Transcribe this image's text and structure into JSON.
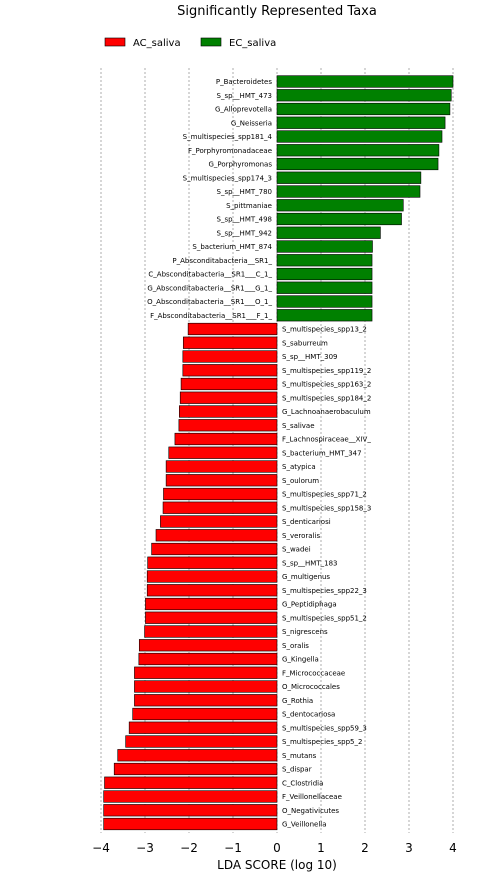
{
  "chart_data": {
    "type": "bar",
    "orientation": "horizontal",
    "title": "Significantly Represented Taxa",
    "xlabel": "LDA SCORE (log 10)",
    "ylabel": "",
    "xlim": [
      -4.1,
      4.2
    ],
    "xticks": [
      "−4",
      "−3",
      "−2",
      "−1",
      "0",
      "1",
      "2",
      "3",
      "4"
    ],
    "xtick_values": [
      -4,
      -3,
      -2,
      -1,
      0,
      1,
      2,
      3,
      4
    ],
    "grid": "vertical dashed",
    "legend_position": "top-left",
    "colors": {
      "AC_saliva": "#ff0000",
      "EC_saliva": "#008000"
    },
    "series": [
      {
        "name": "AC_saliva"
      },
      {
        "name": "EC_saliva"
      }
    ],
    "bars": [
      {
        "label": "P_Bacteroidetes",
        "value": 4.0,
        "group": "EC_saliva"
      },
      {
        "label": "S_sp__HMT_473",
        "value": 3.96,
        "group": "EC_saliva"
      },
      {
        "label": "G_Alloprevotella",
        "value": 3.93,
        "group": "EC_saliva"
      },
      {
        "label": "G_Neisseria",
        "value": 3.82,
        "group": "EC_saliva"
      },
      {
        "label": "S_multispecies_spp181_4",
        "value": 3.75,
        "group": "EC_saliva"
      },
      {
        "label": "F_Porphyromonadaceae",
        "value": 3.68,
        "group": "EC_saliva"
      },
      {
        "label": "G_Porphyromonas",
        "value": 3.66,
        "group": "EC_saliva"
      },
      {
        "label": "S_multispecies_spp174_3",
        "value": 3.27,
        "group": "EC_saliva"
      },
      {
        "label": "S_sp__HMT_780",
        "value": 3.25,
        "group": "EC_saliva"
      },
      {
        "label": "S_pittmaniae",
        "value": 2.87,
        "group": "EC_saliva"
      },
      {
        "label": "S_sp__HMT_498",
        "value": 2.83,
        "group": "EC_saliva"
      },
      {
        "label": "S_sp__HMT_942",
        "value": 2.35,
        "group": "EC_saliva"
      },
      {
        "label": "S_bacterium_HMT_874",
        "value": 2.17,
        "group": "EC_saliva"
      },
      {
        "label": "P_Absconditabacteria__SR1_",
        "value": 2.16,
        "group": "EC_saliva"
      },
      {
        "label": "C_Absconditabacteria__SR1___C_1_",
        "value": 2.16,
        "group": "EC_saliva"
      },
      {
        "label": "G_Absconditabacteria__SR1___G_1_",
        "value": 2.16,
        "group": "EC_saliva"
      },
      {
        "label": "O_Absconditabacteria__SR1___O_1_",
        "value": 2.16,
        "group": "EC_saliva"
      },
      {
        "label": "F_Absconditabacteria__SR1___F_1_",
        "value": 2.16,
        "group": "EC_saliva"
      },
      {
        "label": "S_multispecies_spp13_2",
        "value": -2.02,
        "group": "AC_saliva"
      },
      {
        "label": "S_saburreum",
        "value": -2.13,
        "group": "AC_saliva"
      },
      {
        "label": "S_sp__HMT_309",
        "value": -2.14,
        "group": "AC_saliva"
      },
      {
        "label": "S_multispecies_spp119_2",
        "value": -2.14,
        "group": "AC_saliva"
      },
      {
        "label": "S_multispecies_spp163_2",
        "value": -2.18,
        "group": "AC_saliva"
      },
      {
        "label": "S_multispecies_spp184_2",
        "value": -2.2,
        "group": "AC_saliva"
      },
      {
        "label": "G_Lachnoanaerobaculum",
        "value": -2.22,
        "group": "AC_saliva"
      },
      {
        "label": "S_salivae",
        "value": -2.23,
        "group": "AC_saliva"
      },
      {
        "label": "F_Lachnospiraceae__XIV_",
        "value": -2.32,
        "group": "AC_saliva"
      },
      {
        "label": "S_bacterium_HMT_347",
        "value": -2.46,
        "group": "AC_saliva"
      },
      {
        "label": "S_atypica",
        "value": -2.52,
        "group": "AC_saliva"
      },
      {
        "label": "S_oulorum",
        "value": -2.52,
        "group": "AC_saliva"
      },
      {
        "label": "S_multispecies_spp71_2",
        "value": -2.58,
        "group": "AC_saliva"
      },
      {
        "label": "S_multispecies_spp158_3",
        "value": -2.59,
        "group": "AC_saliva"
      },
      {
        "label": "S_denticariosi",
        "value": -2.65,
        "group": "AC_saliva"
      },
      {
        "label": "S_veroralis",
        "value": -2.75,
        "group": "AC_saliva"
      },
      {
        "label": "S_wadei",
        "value": -2.85,
        "group": "AC_saliva"
      },
      {
        "label": "S_sp__HMT_183",
        "value": -2.94,
        "group": "AC_saliva"
      },
      {
        "label": "G_multigenus",
        "value": -2.95,
        "group": "AC_saliva"
      },
      {
        "label": "S_multispecies_spp22_3",
        "value": -2.95,
        "group": "AC_saliva"
      },
      {
        "label": "G_Peptidiphaga",
        "value": -2.99,
        "group": "AC_saliva"
      },
      {
        "label": "S_multispecies_spp51_2",
        "value": -2.99,
        "group": "AC_saliva"
      },
      {
        "label": "S_nigrescens",
        "value": -3.01,
        "group": "AC_saliva"
      },
      {
        "label": "S_oralis",
        "value": -3.13,
        "group": "AC_saliva"
      },
      {
        "label": "G_Kingella",
        "value": -3.14,
        "group": "AC_saliva"
      },
      {
        "label": "F_Micrococcaceae",
        "value": -3.24,
        "group": "AC_saliva"
      },
      {
        "label": "O_Micrococcales",
        "value": -3.24,
        "group": "AC_saliva"
      },
      {
        "label": "G_Rothia",
        "value": -3.24,
        "group": "AC_saliva"
      },
      {
        "label": "S_dentocariosa",
        "value": -3.28,
        "group": "AC_saliva"
      },
      {
        "label": "S_multispecies_spp59_3",
        "value": -3.36,
        "group": "AC_saliva"
      },
      {
        "label": "S_multispecies_spp5_2",
        "value": -3.44,
        "group": "AC_saliva"
      },
      {
        "label": "S_mutans",
        "value": -3.62,
        "group": "AC_saliva"
      },
      {
        "label": "S_dispar",
        "value": -3.7,
        "group": "AC_saliva"
      },
      {
        "label": "C_Clostridia",
        "value": -3.92,
        "group": "AC_saliva"
      },
      {
        "label": "F_Veillonellaceae",
        "value": -3.94,
        "group": "AC_saliva"
      },
      {
        "label": "O_Negativicutes",
        "value": -3.94,
        "group": "AC_saliva"
      },
      {
        "label": "G_Veillonella",
        "value": -3.94,
        "group": "AC_saliva"
      }
    ]
  }
}
